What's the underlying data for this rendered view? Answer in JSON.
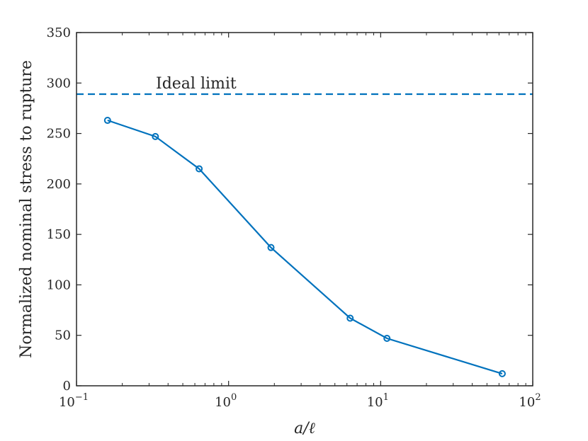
{
  "chart_data": {
    "type": "line",
    "title": "",
    "xlabel": "a/ℓ",
    "ylabel": "Normalized nominal stress to rupture",
    "xscale": "log",
    "xlim": [
      0.1,
      100
    ],
    "ylim": [
      0,
      350
    ],
    "grid": false,
    "x_ticks": [
      {
        "base": "10",
        "exp": "−1",
        "value": 0.1
      },
      {
        "base": "10",
        "exp": "0",
        "value": 1
      },
      {
        "base": "10",
        "exp": "1",
        "value": 10
      },
      {
        "base": "10",
        "exp": "2",
        "value": 100
      }
    ],
    "y_ticks": [
      0,
      50,
      100,
      150,
      200,
      250,
      300,
      350
    ],
    "series": [
      {
        "x": [
          0.16,
          0.33,
          0.64,
          1.9,
          6.3,
          11,
          63
        ],
        "y": [
          263,
          247,
          215,
          137,
          67,
          47,
          12
        ],
        "color": "#0072BD",
        "marker": "circle"
      }
    ],
    "reference_lines": [
      {
        "label": "Ideal limit",
        "y": 289,
        "style": "dashed",
        "color": "#0072BD"
      }
    ]
  }
}
